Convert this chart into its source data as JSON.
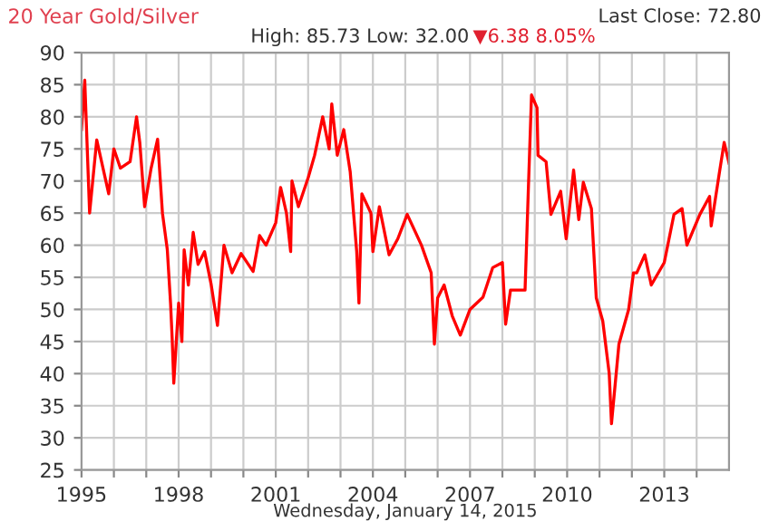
{
  "chart_data": {
    "type": "line",
    "title": "20 Year Gold/Silver",
    "xlabel": "Wednesday, January 14, 2015",
    "annotations": [
      "Last Close: 72.80",
      "High: 85.73 Low: 32.00",
      "▼6.38 8.05%"
    ],
    "x": [
      1995.0,
      1995.1,
      1995.25,
      1995.47,
      1995.84,
      1996.0,
      1996.2,
      1996.5,
      1996.7,
      1996.8,
      1996.95,
      1997.15,
      1997.35,
      1997.5,
      1997.65,
      1997.75,
      1997.8,
      1997.85,
      1998.0,
      1998.1,
      1998.17,
      1998.3,
      1998.45,
      1998.6,
      1998.8,
      1999.0,
      1999.2,
      1999.4,
      1999.65,
      1999.93,
      2000.3,
      2000.5,
      2000.7,
      2001.0,
      2001.15,
      2001.33,
      2001.46,
      2001.5,
      2001.7,
      2002.0,
      2002.2,
      2002.45,
      2002.65,
      2002.73,
      2002.9,
      2003.1,
      2003.3,
      2003.5,
      2003.57,
      2003.66,
      2003.94,
      2004.0,
      2004.2,
      2004.5,
      2004.77,
      2005.06,
      2005.5,
      2005.8,
      2005.9,
      2006.0,
      2006.2,
      2006.45,
      2006.7,
      2007.0,
      2007.4,
      2007.7,
      2008.0,
      2008.1,
      2008.25,
      2008.5,
      2008.7,
      2008.8,
      2008.9,
      2009.07,
      2009.1,
      2009.35,
      2009.5,
      2009.8,
      2009.97,
      2010.2,
      2010.36,
      2010.5,
      2010.75,
      2010.9,
      2011.1,
      2011.3,
      2011.37,
      2011.6,
      2011.9,
      2012.05,
      2012.15,
      2012.4,
      2012.6,
      2013.0,
      2013.3,
      2013.55,
      2013.7,
      2014.1,
      2014.4,
      2014.45,
      2014.7,
      2014.85,
      2015.0
    ],
    "series": [
      {
        "color": "#ff0000",
        "values": [
          78,
          85.7,
          65,
          76.4,
          68,
          75,
          72,
          73,
          80,
          76,
          66,
          72,
          76.5,
          65,
          59.3,
          51,
          45.5,
          38.5,
          51,
          45,
          59.3,
          53.8,
          62,
          57,
          59,
          54,
          47.5,
          60,
          55.7,
          58.7,
          55.9,
          61.5,
          60,
          63.5,
          69,
          65,
          59,
          70,
          66,
          70.5,
          74,
          80,
          75,
          82,
          74,
          78,
          71.4,
          59,
          51,
          68,
          65,
          59,
          66,
          58.5,
          61,
          64.8,
          60,
          55.7,
          44.6,
          51.8,
          53.8,
          49,
          46,
          50,
          51.9,
          56.5,
          57.3,
          47.7,
          53,
          53,
          53,
          68.4,
          83.4,
          81.4,
          74,
          73,
          64.8,
          68.4,
          61,
          71.7,
          64,
          69.8,
          65.7,
          51.8,
          48.2,
          40,
          32.2,
          44.6,
          50,
          55.7,
          55.7,
          58.5,
          53.8,
          57.3,
          64.8,
          65.7,
          60,
          64.8,
          67.6,
          63,
          71.2,
          76,
          72.8
        ]
      }
    ],
    "xlim": [
      1995,
      2015
    ],
    "xticks": [
      1995,
      {
        "value": 1996,
        "label": null
      },
      {
        "value": 1997,
        "label": null
      },
      1998,
      {
        "value": 1999,
        "label": null
      },
      {
        "value": 2000,
        "label": null
      },
      2001,
      {
        "value": 2002,
        "label": null
      },
      {
        "value": 2003,
        "label": null
      },
      2004,
      {
        "value": 2005,
        "label": null
      },
      {
        "value": 2006,
        "label": null
      },
      2007,
      {
        "value": 2008,
        "label": null
      },
      {
        "value": 2009,
        "label": null
      },
      2010,
      {
        "value": 2011,
        "label": null
      },
      {
        "value": 2012,
        "label": null
      },
      2013,
      {
        "value": 2014,
        "label": null
      }
    ],
    "ylim": [
      25,
      90
    ],
    "yticks": [
      25,
      30,
      35,
      40,
      45,
      50,
      55,
      60,
      65,
      70,
      75,
      80,
      85,
      90
    ],
    "grid": true,
    "legend": false,
    "marker": "none",
    "line_style": "solid"
  }
}
